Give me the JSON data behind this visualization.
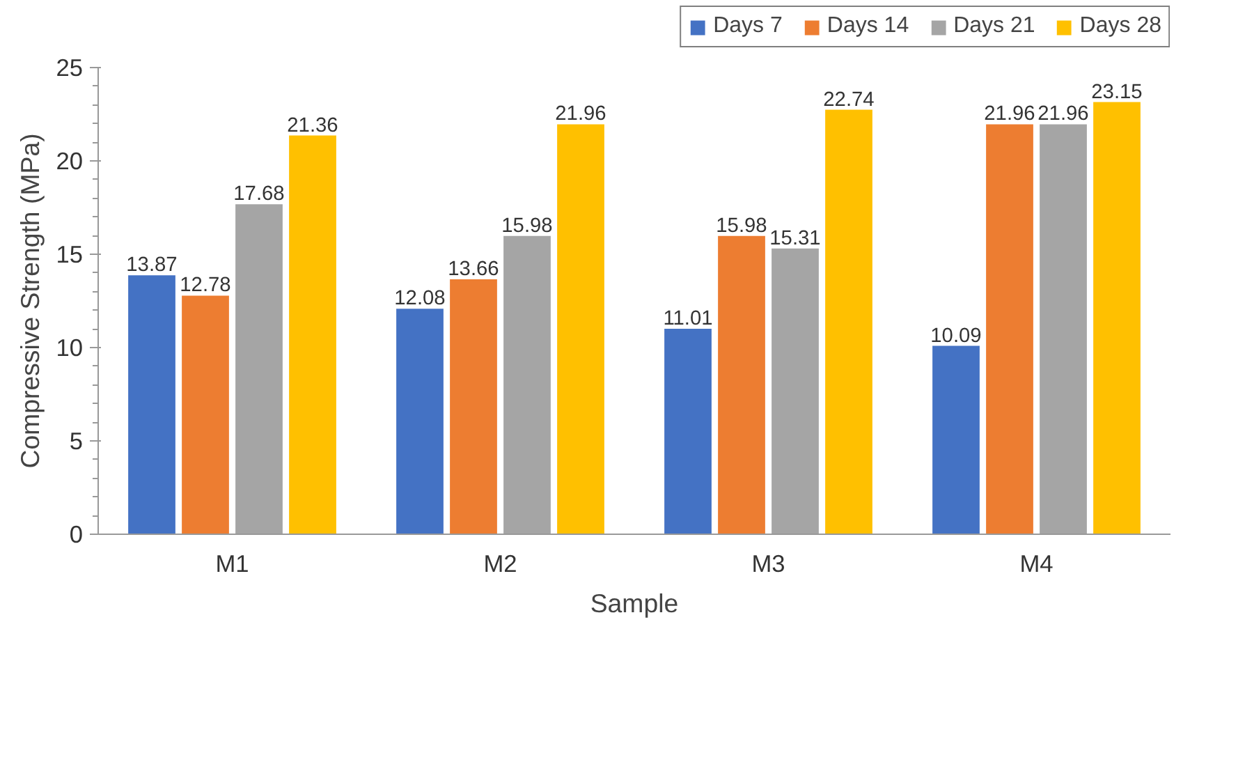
{
  "chart_data": {
    "type": "bar",
    "xlabel": "Sample",
    "ylabel": "Compressive Strength (MPa)",
    "categories": [
      "M1",
      "M2",
      "M3",
      "M4"
    ],
    "series": [
      {
        "name": "Days 7",
        "color": "#4472c4",
        "values": [
          13.87,
          12.08,
          11.01,
          10.09
        ]
      },
      {
        "name": "Days 14",
        "color": "#ed7d31",
        "values": [
          12.78,
          13.66,
          15.98,
          21.96
        ]
      },
      {
        "name": "Days 21",
        "color": "#a5a5a5",
        "values": [
          17.68,
          15.98,
          15.31,
          21.96
        ]
      },
      {
        "name": "Days 28",
        "color": "#ffc000",
        "values": [
          21.36,
          21.96,
          22.74,
          23.15
        ]
      }
    ],
    "ylim": [
      0,
      25
    ],
    "yticks": [
      0,
      5,
      10,
      15,
      20,
      25
    ],
    "grid": false,
    "legend": "top right",
    "data_labels": true
  }
}
